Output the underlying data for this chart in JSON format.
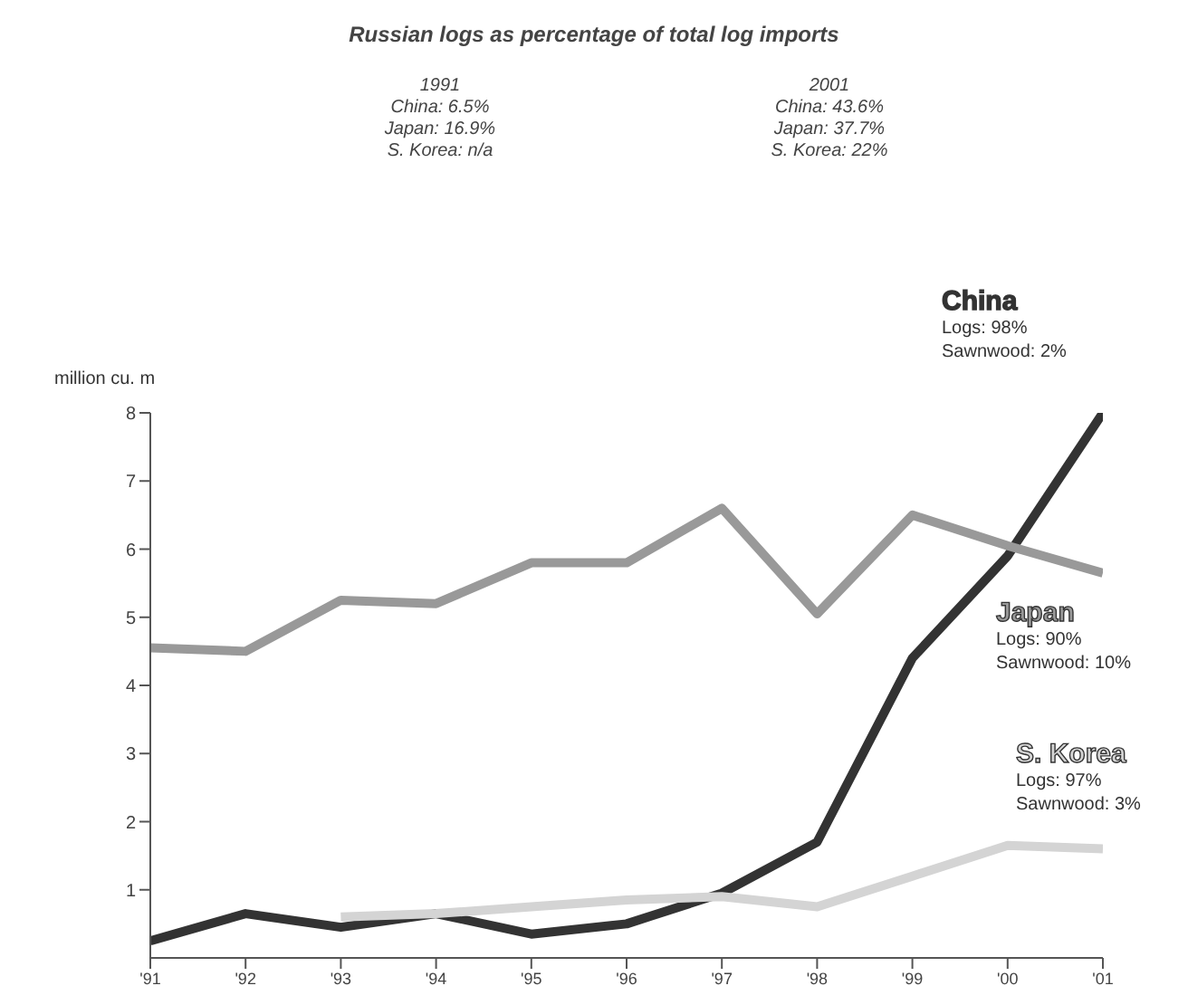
{
  "chart_data": {
    "type": "line",
    "title": "Russian logs as percentage of total log imports",
    "ylabel": "million cu. m",
    "categories": [
      "'91",
      "'92",
      "'93",
      "'94",
      "'95",
      "'96",
      "'97",
      "'98",
      "'99",
      "'00",
      "'01"
    ],
    "series": [
      {
        "name": "China",
        "color": "#333333",
        "values": [
          0.25,
          0.65,
          0.45,
          0.65,
          0.35,
          0.5,
          0.95,
          1.7,
          4.4,
          5.9,
          8.0
        ]
      },
      {
        "name": "Japan",
        "color": "#999999",
        "values": [
          4.55,
          4.5,
          5.25,
          5.2,
          5.8,
          5.8,
          6.6,
          5.05,
          6.5,
          6.05,
          5.65
        ]
      },
      {
        "name": "S. Korea",
        "color": "#d4d4d4",
        "values": [
          null,
          null,
          0.6,
          0.65,
          0.75,
          0.85,
          0.9,
          0.75,
          1.2,
          1.65,
          1.6
        ]
      }
    ],
    "ylim": [
      0,
      8
    ],
    "yticks": [
      1,
      2,
      3,
      4,
      5,
      6,
      7,
      8
    ],
    "grid": false,
    "legend": false,
    "marker": "none",
    "line_style": "solid",
    "annotations": [
      "1991",
      "China: 6.5%",
      "Japan: 16.9%",
      "S. Korea: n/a",
      "2001",
      "China: 43.6%",
      "Japan: 37.7%",
      "S. Korea: 22%",
      "Logs: 98%",
      "Sawnwood: 2%",
      "Logs: 90%",
      "Sawnwood: 10%",
      "Logs: 97%",
      "Sawnwood: 3%"
    ]
  }
}
